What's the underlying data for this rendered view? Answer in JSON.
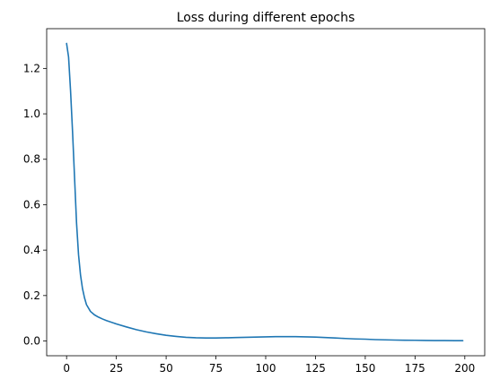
{
  "chart_data": {
    "type": "line",
    "title": "Loss during different epochs",
    "xlabel": "",
    "ylabel": "",
    "xlim": [
      -10,
      210
    ],
    "ylim": [
      -0.065,
      1.375
    ],
    "xticks": [
      0,
      25,
      50,
      75,
      100,
      125,
      150,
      175,
      200
    ],
    "yticks": [
      0.0,
      0.2,
      0.4,
      0.6,
      0.8,
      1.0,
      1.2
    ],
    "ytick_labels": [
      "0.0",
      "0.2",
      "0.4",
      "0.6",
      "0.8",
      "1.0",
      "1.2"
    ],
    "grid": false,
    "legend": "none",
    "series": [
      {
        "color": "#1f77b4",
        "x": [
          0,
          1,
          2,
          3,
          4,
          5,
          6,
          7,
          8,
          9,
          10,
          12,
          14,
          16,
          18,
          20,
          25,
          30,
          35,
          40,
          45,
          50,
          55,
          60,
          65,
          70,
          75,
          80,
          85,
          90,
          95,
          100,
          105,
          110,
          115,
          120,
          125,
          130,
          135,
          140,
          145,
          150,
          155,
          160,
          165,
          170,
          175,
          180,
          185,
          190,
          195,
          199
        ],
        "y": [
          1.31,
          1.25,
          1.1,
          0.92,
          0.72,
          0.52,
          0.38,
          0.29,
          0.23,
          0.19,
          0.16,
          0.13,
          0.115,
          0.105,
          0.097,
          0.09,
          0.075,
          0.062,
          0.05,
          0.04,
          0.032,
          0.025,
          0.02,
          0.016,
          0.014,
          0.013,
          0.013,
          0.014,
          0.015,
          0.016,
          0.017,
          0.018,
          0.019,
          0.019,
          0.019,
          0.018,
          0.017,
          0.015,
          0.013,
          0.011,
          0.009,
          0.008,
          0.006,
          0.005,
          0.004,
          0.0035,
          0.003,
          0.0025,
          0.002,
          0.002,
          0.0015,
          0.0015
        ]
      }
    ]
  }
}
